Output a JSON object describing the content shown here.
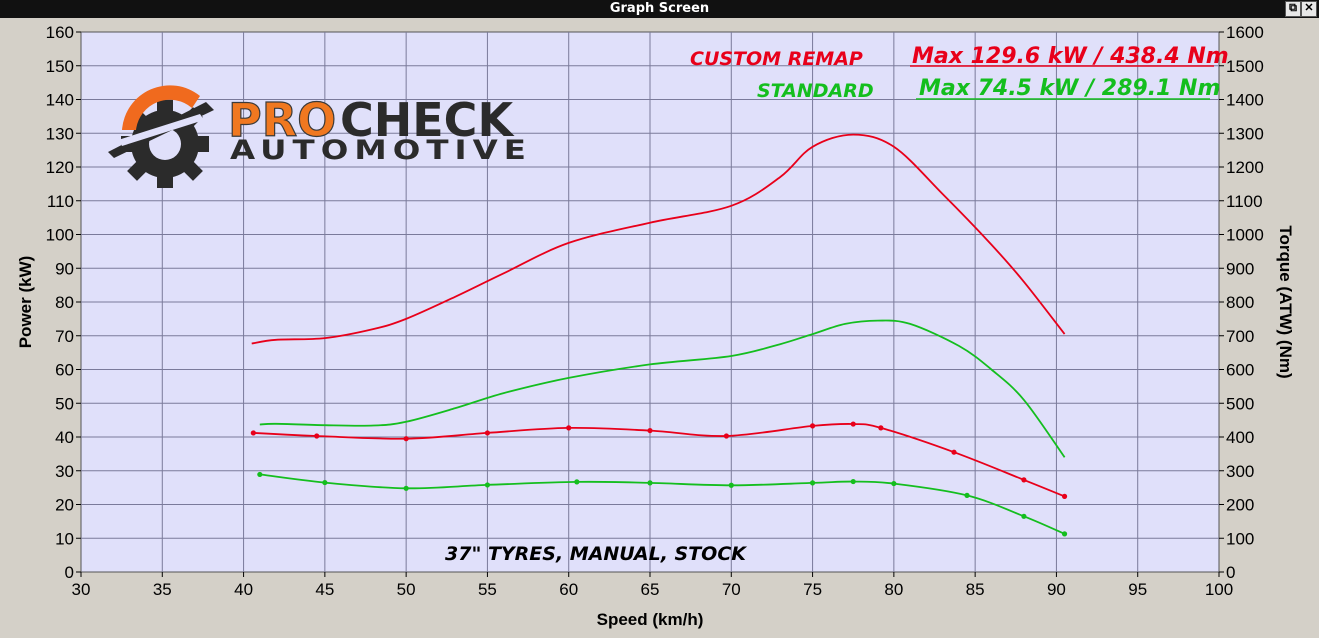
{
  "window": {
    "title": "Graph Screen",
    "restore_label": "⧉",
    "close_label": "✕"
  },
  "logo": {
    "brand_pro": "PRO",
    "brand_check": "CHECK",
    "brand_sub": "AUTOMOTIVE"
  },
  "annotations": {
    "custom_label": "CUSTOM REMAP",
    "custom_max": "Max 129.6 kW  / 438.4 Nm",
    "standard_label": "STANDARD",
    "standard_max": "Max 74.5 kW  / 289.1 Nm",
    "note": "37\" TYRES, MANUAL, STOCK"
  },
  "colors": {
    "plot_bg": "#e0e0fa",
    "grid": "#7a7a9a",
    "custom": "#e8001a",
    "standard": "#14be1e"
  },
  "chart_data": {
    "type": "line",
    "xlabel": "Speed (km/h)",
    "ylabel": "Power (kW)",
    "y2label": "Torque (ATW) (Nm)",
    "xlim": [
      30,
      100
    ],
    "ylim": [
      0,
      160
    ],
    "y2lim": [
      0,
      1600
    ],
    "x_ticks": [
      "30",
      "35",
      "40",
      "45",
      "50",
      "55",
      "60",
      "65",
      "70",
      "75",
      "80",
      "85",
      "90",
      "95",
      "100"
    ],
    "y_ticks": [
      "0",
      "10",
      "20",
      "30",
      "40",
      "50",
      "60",
      "70",
      "80",
      "90",
      "100",
      "110",
      "120",
      "130",
      "140",
      "150",
      "160"
    ],
    "y2_ticks": [
      "0",
      "100",
      "200",
      "300",
      "400",
      "500",
      "600",
      "700",
      "800",
      "900",
      "1000",
      "1100",
      "1200",
      "1300",
      "1400",
      "1500",
      "1600"
    ],
    "grid": true,
    "series": [
      {
        "name": "CUSTOM REMAP",
        "measure": "power",
        "axis": "left",
        "color": "#e8001a",
        "x": [
          40.5,
          42,
          45,
          48,
          50,
          53,
          56,
          60,
          65,
          70,
          73,
          75,
          77.5,
          80,
          83,
          86,
          88,
          90.5
        ],
        "y": [
          67.7,
          68.8,
          69.3,
          72,
          75,
          81.5,
          88.5,
          97.5,
          103.5,
          108.5,
          117,
          126,
          129.6,
          126,
          112,
          97,
          86,
          70.5
        ]
      },
      {
        "name": "STANDARD",
        "measure": "power",
        "axis": "left",
        "color": "#14be1e",
        "x": [
          41,
          42,
          45,
          48,
          50,
          53,
          56,
          60,
          65,
          70,
          73,
          75,
          77,
          79,
          81,
          84,
          86,
          88,
          90.5
        ],
        "y": [
          43.7,
          43.9,
          43.5,
          43.4,
          44.5,
          48.5,
          53,
          57.5,
          61.5,
          64,
          67.5,
          70.5,
          73.5,
          74.5,
          73.5,
          67,
          60,
          51,
          34
        ]
      },
      {
        "name": "CUSTOM REMAP",
        "measure": "torque",
        "axis": "right",
        "color": "#e8001a",
        "x": [
          40.6,
          44.5,
          50,
          55,
          60,
          65,
          69.7,
          75,
          77.5,
          79.2,
          83.7,
          88,
          90.5
        ],
        "y": [
          412,
          403,
          395,
          412,
          427,
          419,
          403,
          433,
          438.4,
          427,
          355,
          273,
          224
        ]
      },
      {
        "name": "STANDARD",
        "measure": "torque",
        "axis": "right",
        "color": "#14be1e",
        "x": [
          41,
          45,
          50,
          55,
          60.5,
          65,
          70,
          75,
          77.5,
          80,
          84.5,
          88,
          90.5
        ],
        "y": [
          289.1,
          265,
          248,
          258,
          267,
          264,
          257,
          264,
          268,
          262,
          227,
          165,
          113
        ]
      }
    ]
  }
}
